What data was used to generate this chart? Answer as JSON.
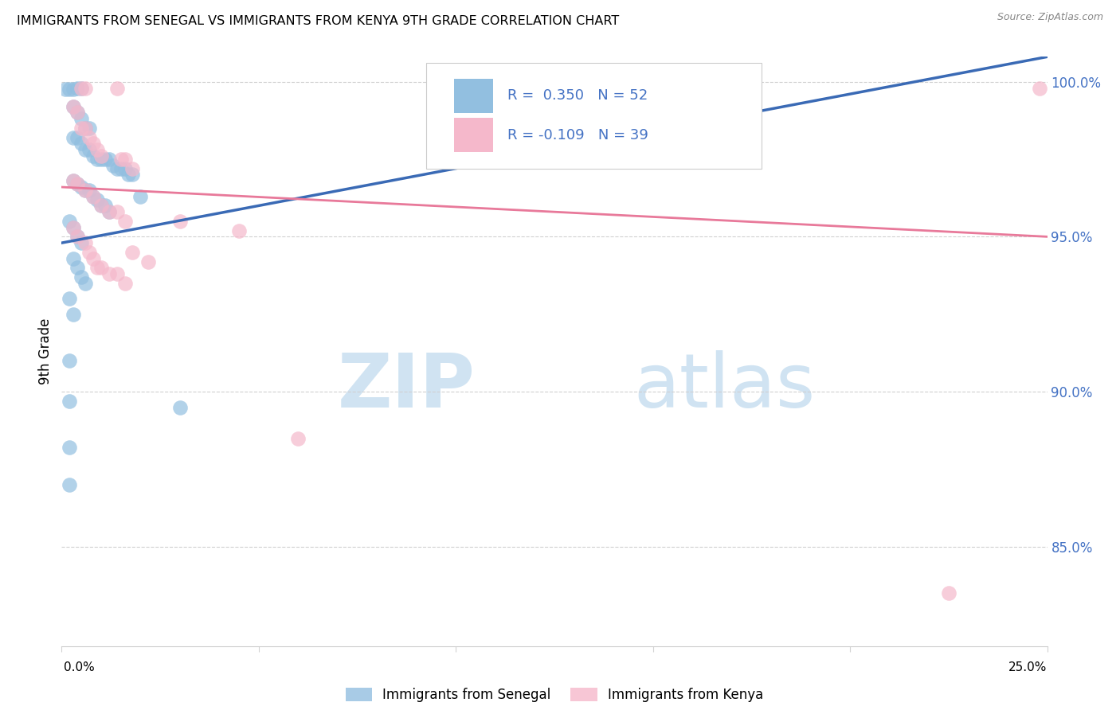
{
  "title": "IMMIGRANTS FROM SENEGAL VS IMMIGRANTS FROM KENYA 9TH GRADE CORRELATION CHART",
  "source": "Source: ZipAtlas.com",
  "ylabel": "9th Grade",
  "xmin": 0.0,
  "xmax": 0.25,
  "ymin": 0.818,
  "ymax": 1.008,
  "yticks": [
    0.85,
    0.9,
    0.95,
    1.0
  ],
  "ytick_labels": [
    "85.0%",
    "90.0%",
    "95.0%",
    "100.0%"
  ],
  "watermark_zip": "ZIP",
  "watermark_atlas": "atlas",
  "legend_text1": "R =  0.350   N = 52",
  "legend_text2": "R = -0.109   N = 39",
  "blue_color": "#92bfe0",
  "pink_color": "#f5b8cb",
  "blue_line_color": "#3a6ab5",
  "pink_line_color": "#e8799a",
  "blue_dots": [
    [
      0.001,
      0.9975
    ],
    [
      0.002,
      0.9975
    ],
    [
      0.003,
      0.9975
    ],
    [
      0.004,
      0.9978
    ],
    [
      0.005,
      0.9978
    ],
    [
      0.003,
      0.992
    ],
    [
      0.004,
      0.99
    ],
    [
      0.005,
      0.988
    ],
    [
      0.006,
      0.985
    ],
    [
      0.007,
      0.985
    ],
    [
      0.003,
      0.982
    ],
    [
      0.004,
      0.982
    ],
    [
      0.005,
      0.98
    ],
    [
      0.006,
      0.978
    ],
    [
      0.007,
      0.978
    ],
    [
      0.008,
      0.976
    ],
    [
      0.009,
      0.975
    ],
    [
      0.01,
      0.975
    ],
    [
      0.011,
      0.975
    ],
    [
      0.012,
      0.975
    ],
    [
      0.013,
      0.973
    ],
    [
      0.014,
      0.972
    ],
    [
      0.015,
      0.972
    ],
    [
      0.016,
      0.972
    ],
    [
      0.017,
      0.97
    ],
    [
      0.018,
      0.97
    ],
    [
      0.003,
      0.968
    ],
    [
      0.004,
      0.967
    ],
    [
      0.005,
      0.966
    ],
    [
      0.006,
      0.965
    ],
    [
      0.007,
      0.965
    ],
    [
      0.008,
      0.963
    ],
    [
      0.009,
      0.962
    ],
    [
      0.01,
      0.96
    ],
    [
      0.011,
      0.96
    ],
    [
      0.012,
      0.958
    ],
    [
      0.002,
      0.955
    ],
    [
      0.003,
      0.953
    ],
    [
      0.004,
      0.95
    ],
    [
      0.005,
      0.948
    ],
    [
      0.003,
      0.943
    ],
    [
      0.004,
      0.94
    ],
    [
      0.005,
      0.937
    ],
    [
      0.006,
      0.935
    ],
    [
      0.02,
      0.963
    ],
    [
      0.002,
      0.93
    ],
    [
      0.003,
      0.925
    ],
    [
      0.002,
      0.91
    ],
    [
      0.002,
      0.897
    ],
    [
      0.002,
      0.882
    ],
    [
      0.002,
      0.87
    ],
    [
      0.03,
      0.895
    ]
  ],
  "pink_dots": [
    [
      0.005,
      0.9978
    ],
    [
      0.006,
      0.9978
    ],
    [
      0.014,
      0.9978
    ],
    [
      0.003,
      0.992
    ],
    [
      0.004,
      0.99
    ],
    [
      0.005,
      0.985
    ],
    [
      0.006,
      0.985
    ],
    [
      0.007,
      0.982
    ],
    [
      0.008,
      0.98
    ],
    [
      0.009,
      0.978
    ],
    [
      0.01,
      0.976
    ],
    [
      0.015,
      0.975
    ],
    [
      0.016,
      0.975
    ],
    [
      0.018,
      0.972
    ],
    [
      0.003,
      0.968
    ],
    [
      0.004,
      0.967
    ],
    [
      0.006,
      0.965
    ],
    [
      0.008,
      0.963
    ],
    [
      0.01,
      0.96
    ],
    [
      0.012,
      0.958
    ],
    [
      0.014,
      0.958
    ],
    [
      0.016,
      0.955
    ],
    [
      0.003,
      0.953
    ],
    [
      0.004,
      0.95
    ],
    [
      0.006,
      0.948
    ],
    [
      0.007,
      0.945
    ],
    [
      0.008,
      0.943
    ],
    [
      0.009,
      0.94
    ],
    [
      0.01,
      0.94
    ],
    [
      0.012,
      0.938
    ],
    [
      0.014,
      0.938
    ],
    [
      0.016,
      0.935
    ],
    [
      0.03,
      0.955
    ],
    [
      0.045,
      0.952
    ],
    [
      0.06,
      0.885
    ],
    [
      0.225,
      0.835
    ],
    [
      0.248,
      0.9978
    ],
    [
      0.018,
      0.945
    ],
    [
      0.022,
      0.942
    ]
  ],
  "blue_line": {
    "x0": 0.0,
    "y0": 0.948,
    "x1": 0.25,
    "y1": 1.008
  },
  "pink_line": {
    "x0": 0.0,
    "y0": 0.966,
    "x1": 0.25,
    "y1": 0.95
  }
}
